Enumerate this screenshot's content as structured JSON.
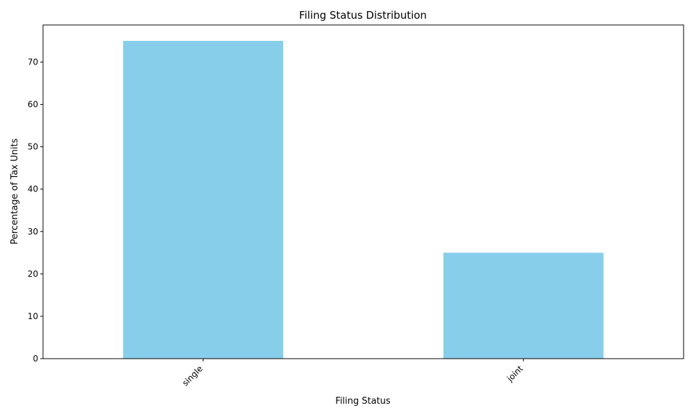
{
  "chart_data": {
    "type": "bar",
    "title": "Filing Status Distribution",
    "xlabel": "Filing Status",
    "ylabel": "Percentage of Tax Units",
    "categories": [
      "single",
      "joint"
    ],
    "values": [
      75,
      25
    ],
    "ylim": [
      0,
      78.75
    ],
    "yticks": [
      0,
      10,
      20,
      30,
      40,
      50,
      60,
      70
    ],
    "bar_color": "#87ceeb",
    "grid": false,
    "legend": "none",
    "xtick_rotation": -45
  }
}
